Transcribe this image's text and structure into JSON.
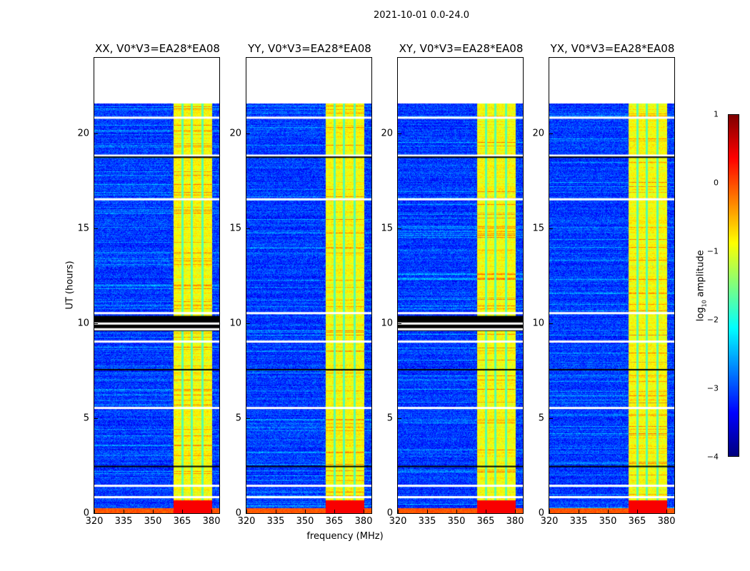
{
  "chart_data": {
    "type": "heatmap",
    "title": "2021-10-01 0.0-24.0",
    "xlabel": "frequency (MHz)",
    "ylabel": "UT (hours)",
    "xlim": [
      320,
      384
    ],
    "ylim": [
      0,
      24
    ],
    "xticks": [
      "320",
      "335",
      "350",
      "365",
      "380"
    ],
    "xtick_values": [
      320,
      335,
      350,
      365,
      380
    ],
    "yticks": [
      "0",
      "5",
      "10",
      "15",
      "20"
    ],
    "ytick_values": [
      0,
      5,
      10,
      15,
      20
    ],
    "data_extent_hours": [
      0,
      21.6
    ],
    "rfi_band_mhz": [
      360.4,
      380
    ],
    "rfi_subband_edges_mhz": [
      364.8,
      369.8,
      375.3
    ],
    "flagged_rows_hours": [
      0.9,
      1.5,
      5.6,
      9.1,
      10.6,
      16.6,
      18.9,
      20.9
    ],
    "panels": [
      {
        "title": "XX, V0*V3=EA28*EA08",
        "zero_block_hours": [
          9.6,
          10.4
        ]
      },
      {
        "title": "YY, V0*V3=EA28*EA08",
        "zero_block_hours": null
      },
      {
        "title": "XY, V0*V3=EA28*EA08",
        "zero_block_hours": [
          9.6,
          10.4
        ]
      },
      {
        "title": "YX, V0*V3=EA28*EA08",
        "zero_block_hours": null
      }
    ],
    "colorbar": {
      "label": "log10 amplitude",
      "label_main": "log",
      "label_sub": "10",
      "label_rest": " amplitude",
      "range": [
        -4,
        1
      ],
      "ticks": [
        "1",
        "0",
        "−1",
        "−2",
        "−3",
        "−4"
      ],
      "tick_values": [
        1,
        0,
        -1,
        -2,
        -3,
        -4
      ],
      "colormap": "jet"
    }
  }
}
